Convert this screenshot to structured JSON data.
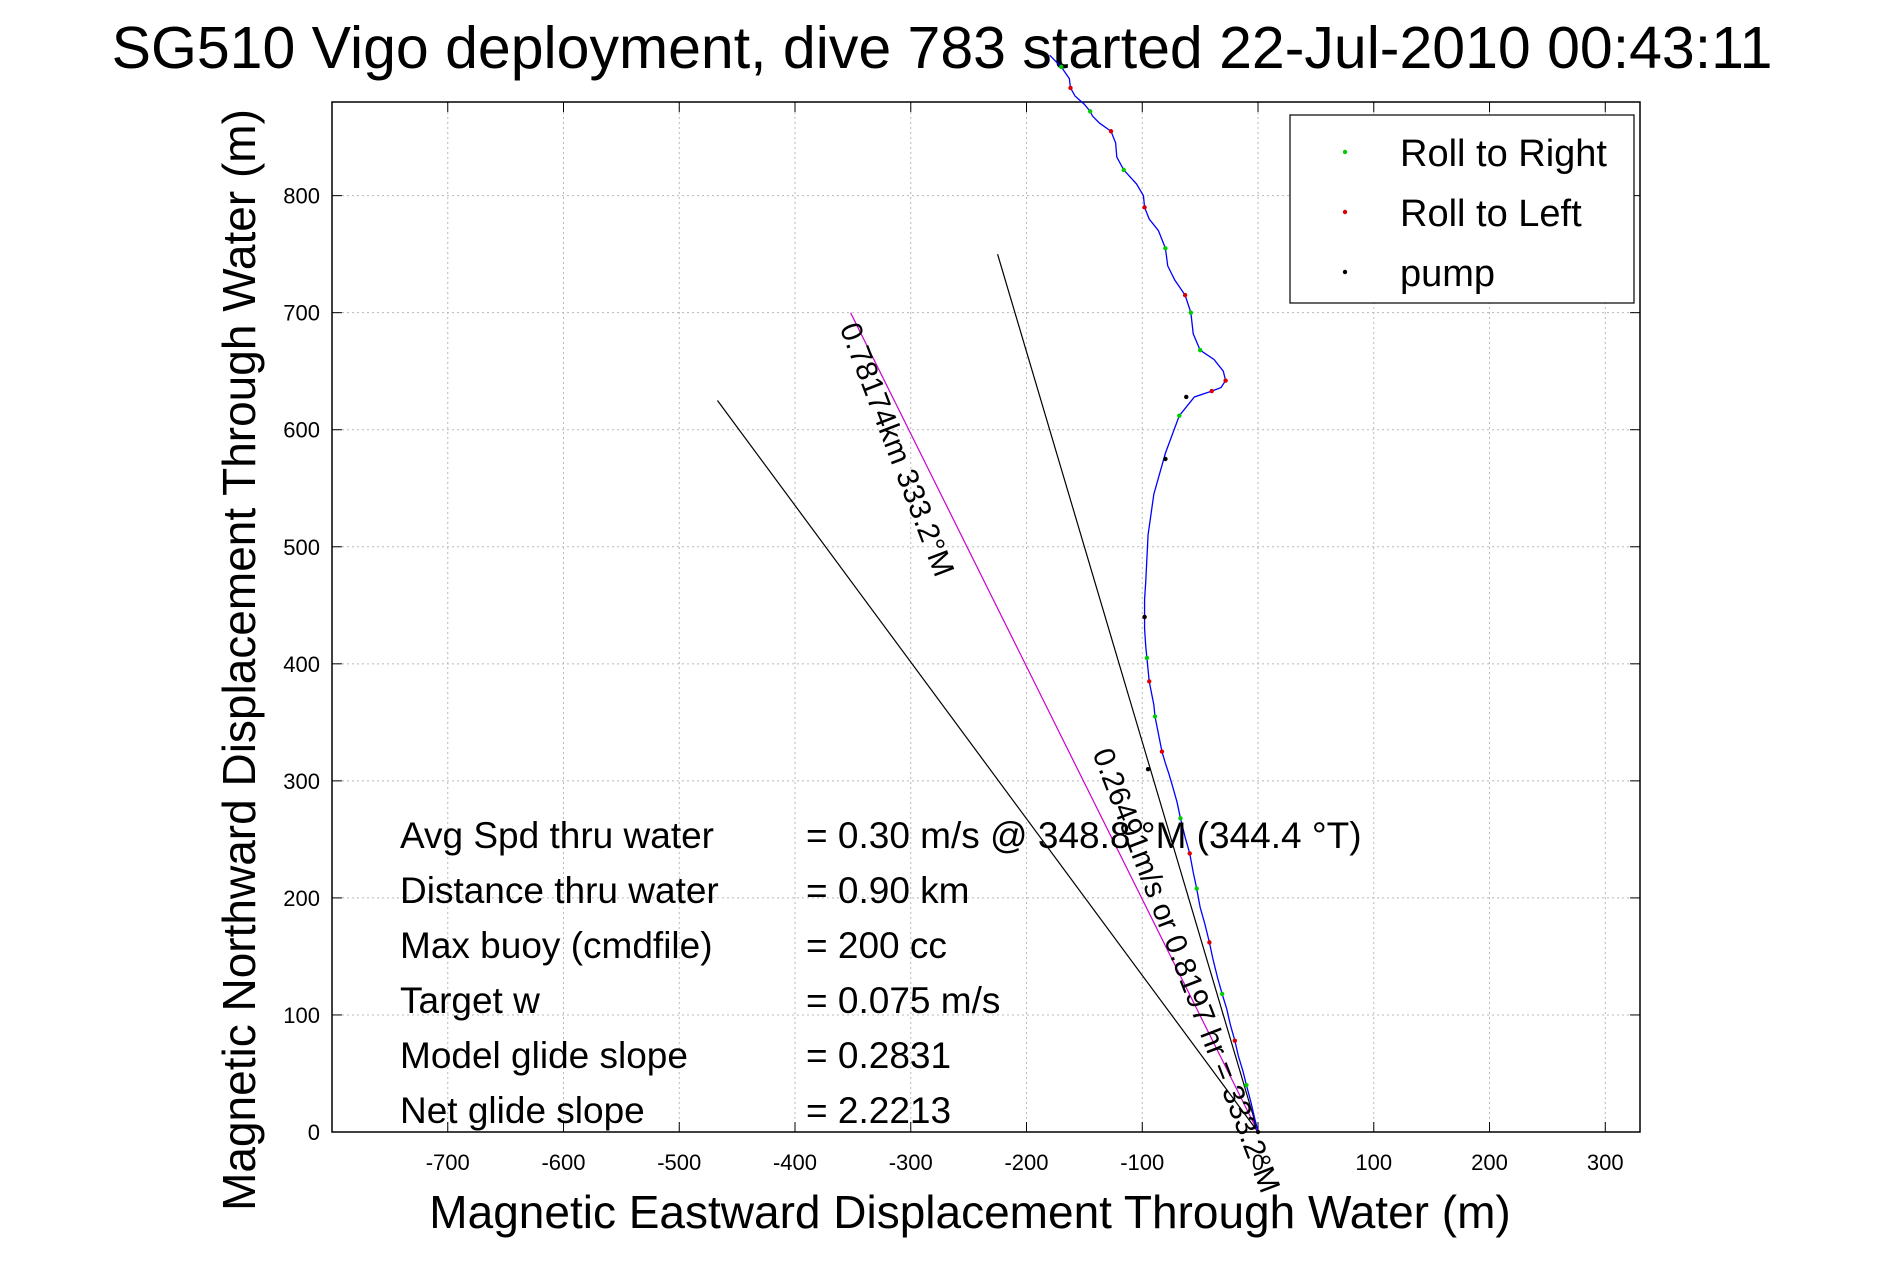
{
  "chart_data": {
    "type": "line",
    "title": "SG510 Vigo deployment, dive 783 started 22-Jul-2010 00:43:11",
    "xlabel": "Magnetic Eastward Displacement Through Water (m)",
    "ylabel": "Magnetic Northward Displacement Through Water (m)",
    "xlim": [
      -800,
      330
    ],
    "ylim": [
      0,
      880
    ],
    "xticks": [
      -700,
      -600,
      -500,
      -400,
      -300,
      -200,
      -100,
      0,
      100,
      200,
      300
    ],
    "yticks": [
      0,
      100,
      200,
      300,
      400,
      500,
      600,
      700,
      800
    ],
    "grid": true,
    "legend": {
      "placement": "top-right",
      "entries": [
        {
          "label": "Roll to Right",
          "color": "#00cc00"
        },
        {
          "label": "Roll to Left",
          "color": "#dd0000"
        },
        {
          "label": "pump",
          "color": "#000000"
        }
      ]
    },
    "track": {
      "color": "#0000ff",
      "x": [
        0,
        -3,
        -6,
        -10,
        -13,
        -17,
        -20,
        -24,
        -27,
        -31,
        -35,
        -39,
        -42,
        -46,
        -50,
        -53,
        -56,
        -59,
        -63,
        -67,
        -70,
        -74,
        -77,
        -80,
        -83,
        -85,
        -87,
        -89,
        -90,
        -92,
        -94,
        -95,
        -96,
        -97,
        -98,
        -98,
        -98,
        -97,
        -96,
        -95,
        -90,
        -80,
        -68,
        -55,
        -40,
        -32,
        -28,
        -30,
        -38,
        -50,
        -56,
        -58,
        -63,
        -72,
        -78,
        -80,
        -86,
        -94,
        -98,
        -99,
        -105,
        -116,
        -122,
        -123,
        -127,
        -137,
        -143,
        -145,
        -150,
        -158,
        -162,
        -163,
        -170,
        -180
      ],
      "y": [
        0,
        12,
        25,
        40,
        52,
        65,
        78,
        92,
        105,
        118,
        132,
        148,
        162,
        178,
        192,
        208,
        222,
        238,
        252,
        268,
        282,
        296,
        306,
        315,
        325,
        335,
        345,
        355,
        365,
        375,
        385,
        395,
        405,
        415,
        430,
        440,
        455,
        470,
        490,
        510,
        545,
        580,
        612,
        628,
        633,
        636,
        642,
        650,
        660,
        668,
        682,
        700,
        715,
        728,
        740,
        755,
        770,
        780,
        790,
        800,
        810,
        822,
        833,
        845,
        855,
        862,
        868,
        872,
        878,
        885,
        892,
        900,
        910,
        920
      ]
    },
    "roll_right_points": {
      "color": "#00cc00",
      "x": [
        -10,
        -31,
        -53,
        -67,
        -89,
        -96,
        -68,
        -50,
        -58,
        -80,
        -116,
        -145,
        -170
      ],
      "y": [
        40,
        118,
        208,
        268,
        355,
        405,
        612,
        668,
        700,
        755,
        822,
        872,
        910
      ]
    },
    "roll_left_points": {
      "color": "#dd0000",
      "x": [
        -20,
        -42,
        -59,
        -83,
        -94,
        -98,
        -40,
        -28,
        -63,
        -98,
        -127,
        -162
      ],
      "y": [
        78,
        162,
        238,
        325,
        385,
        440,
        633,
        642,
        715,
        790,
        855,
        892
      ]
    },
    "pump_points": {
      "color": "#000000",
      "x": [
        0,
        -95,
        -98,
        -80,
        -62
      ],
      "y": [
        0,
        310,
        440,
        575,
        628
      ]
    },
    "reference_lines": [
      {
        "color": "#000000",
        "x": [
          0,
          -225
        ],
        "y": [
          0,
          750
        ]
      },
      {
        "color": "#000000",
        "x": [
          0,
          -467
        ],
        "y": [
          0,
          625
        ]
      },
      {
        "color": "#cc00cc",
        "x": [
          0,
          -352
        ],
        "y": [
          0,
          700
        ]
      }
    ],
    "annotations": [
      {
        "text": "0.78174km 333.2°M",
        "angle_deg": 69
      },
      {
        "text": "0.26491m/s or 0.8197 hr = 333.2°M",
        "angle_deg": 69
      }
    ],
    "stats": [
      {
        "label": "Avg Spd thru water",
        "value": "=  0.30 m/s @  348.8  °M (344.4 °T)"
      },
      {
        "label": "Distance thru water",
        "value": "=  0.90 km"
      },
      {
        "label": "Max buoy (cmdfile)",
        "value": "= 200 cc"
      },
      {
        "label": "Target w",
        "value": "= 0.075 m/s"
      },
      {
        "label": "Model glide slope",
        "value": "= 0.2831"
      },
      {
        "label": "Net glide slope",
        "value": "= 2.2213"
      }
    ]
  }
}
